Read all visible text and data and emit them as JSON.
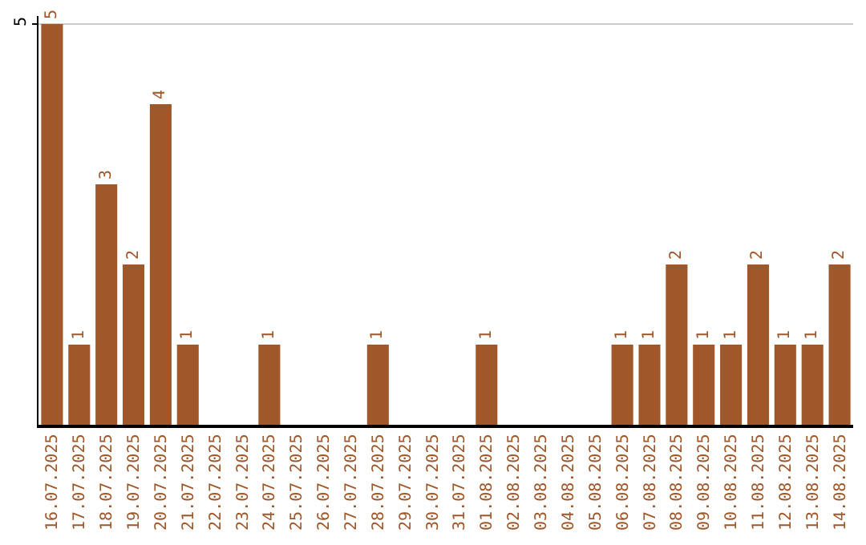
{
  "chart_data": {
    "type": "bar",
    "categories": [
      "16.07.2025",
      "17.07.2025",
      "18.07.2025",
      "19.07.2025",
      "20.07.2025",
      "21.07.2025",
      "22.07.2025",
      "23.07.2025",
      "24.07.2025",
      "25.07.2025",
      "26.07.2025",
      "27.07.2025",
      "28.07.2025",
      "29.07.2025",
      "30.07.2025",
      "31.07.2025",
      "01.08.2025",
      "02.08.2025",
      "03.08.2025",
      "04.08.2025",
      "05.08.2025",
      "06.08.2025",
      "07.08.2025",
      "08.08.2025",
      "09.08.2025",
      "10.08.2025",
      "11.08.2025",
      "12.08.2025",
      "13.08.2025",
      "14.08.2025"
    ],
    "values": [
      5,
      1,
      3,
      2,
      4,
      1,
      0,
      0,
      1,
      0,
      0,
      0,
      1,
      0,
      0,
      0,
      1,
      0,
      0,
      0,
      0,
      1,
      1,
      2,
      1,
      1,
      2,
      1,
      1,
      2
    ],
    "value_labels": [
      "5",
      "1",
      "3",
      "2",
      "4",
      "1",
      null,
      null,
      "1",
      null,
      null,
      null,
      "1",
      null,
      null,
      null,
      "1",
      null,
      null,
      null,
      null,
      "1",
      "1",
      "2",
      "1",
      "1",
      "2",
      "1",
      "1",
      "2"
    ],
    "color": "#a0572a",
    "ylim": [
      0,
      5.1
    ],
    "yticks": [
      5
    ],
    "grid": "y",
    "legend": false
  }
}
